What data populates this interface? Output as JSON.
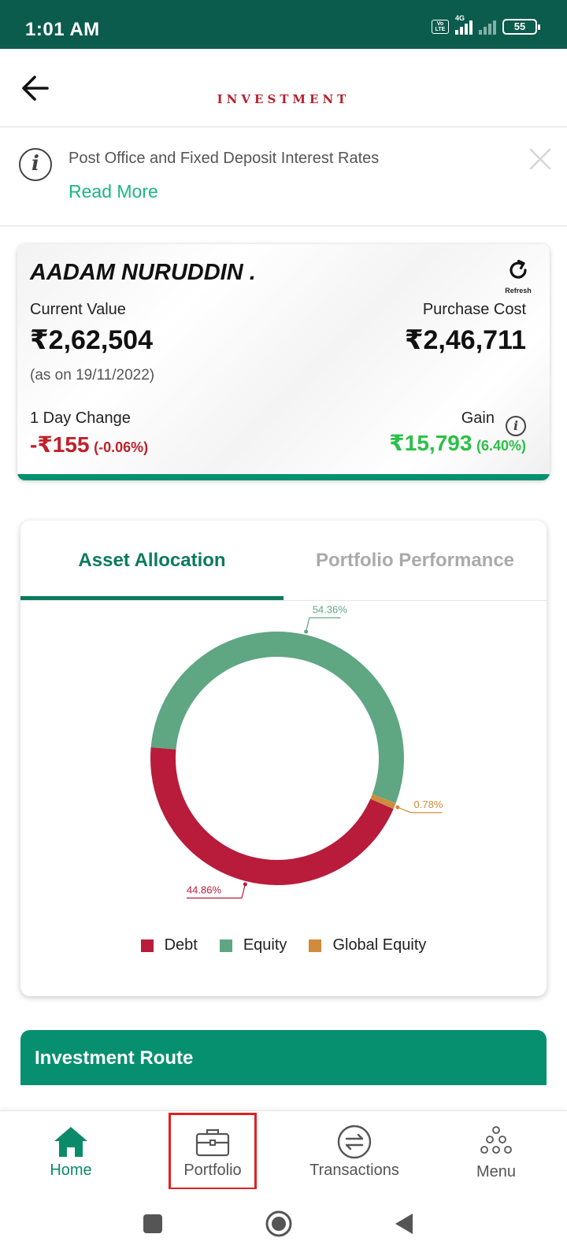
{
  "status_bar": {
    "time": "1:01 AM",
    "volte": "Vo LTE",
    "network": "4G",
    "battery": "55"
  },
  "header": {
    "brand": "INVESTMENT"
  },
  "notice": {
    "text": "Post Office and Fixed Deposit Interest Rates",
    "link": "Read More"
  },
  "summary": {
    "holder_name": "AADAM NURUDDIN .",
    "refresh_label": "Refresh",
    "current_value_label": "Current Value",
    "current_value": "₹2,62,504",
    "as_on": "(as on 19/11/2022)",
    "purchase_cost_label": "Purchase Cost",
    "purchase_cost": "₹2,46,711",
    "day_change_label": "1 Day Change",
    "day_change_value": "-₹155",
    "day_change_pct": "(-0.06%)",
    "gain_label": "Gain",
    "gain_value": "₹15,793",
    "gain_pct": "(6.40%)"
  },
  "allocation": {
    "tabs": [
      "Asset Allocation",
      "Portfolio Performance"
    ],
    "active_tab": 0,
    "legend": [
      {
        "name": "Debt",
        "color": "#b81c3a"
      },
      {
        "name": "Equity",
        "color": "#5fa682"
      },
      {
        "name": "Global Equity",
        "color": "#d18b3d"
      }
    ]
  },
  "chart_data": {
    "type": "pie",
    "donut": true,
    "slices": [
      {
        "name": "Equity",
        "value": 54.36,
        "label": "54.36%",
        "color": "#5fa682"
      },
      {
        "name": "Global Equity",
        "value": 0.78,
        "label": "0.78%",
        "color": "#d18b3d"
      },
      {
        "name": "Debt",
        "value": 44.86,
        "label": "44.86%",
        "color": "#b81c3a"
      }
    ],
    "legend_position": "bottom"
  },
  "route": {
    "title": "Investment Route"
  },
  "bottom_nav": {
    "items": [
      {
        "label": "Home",
        "active": true
      },
      {
        "label": "Portfolio",
        "active": false
      },
      {
        "label": "Transactions",
        "active": false
      },
      {
        "label": "Menu",
        "active": false
      }
    ]
  },
  "colors": {
    "brand_green": "#079070",
    "status_bar": "#0b5c4d",
    "negative": "#c0202a",
    "positive": "#2bc048",
    "brand_red": "#b8202f"
  }
}
